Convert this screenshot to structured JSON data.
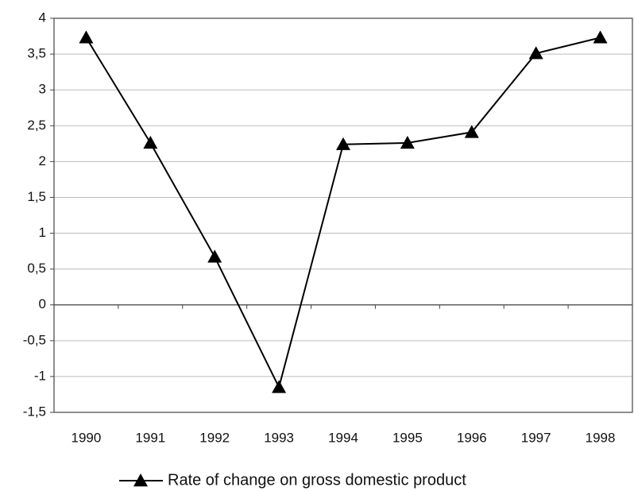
{
  "chart_data": {
    "type": "line",
    "categories": [
      "1990",
      "1991",
      "1992",
      "1993",
      "1994",
      "1995",
      "1996",
      "1997",
      "1998"
    ],
    "series": [
      {
        "name": "Rate of change on gross domestic product",
        "color": "#000000",
        "values": [
          3.73,
          2.26,
          0.67,
          -1.15,
          2.24,
          2.26,
          2.41,
          3.51,
          3.73
        ]
      }
    ],
    "ylim": [
      -1.5,
      4
    ],
    "yticks": [
      {
        "value": -1.5,
        "label": "-1,5"
      },
      -1,
      {
        "value": -0.5,
        "label": "-0,5"
      },
      0,
      {
        "value": 0.5,
        "label": "0,5"
      },
      1,
      {
        "value": 1.5,
        "label": "1,5"
      },
      2,
      {
        "value": 2.5,
        "label": "2,5"
      },
      3,
      {
        "value": 3.5,
        "label": "3,5"
      },
      4
    ],
    "grid": true,
    "legend": "bottom"
  }
}
